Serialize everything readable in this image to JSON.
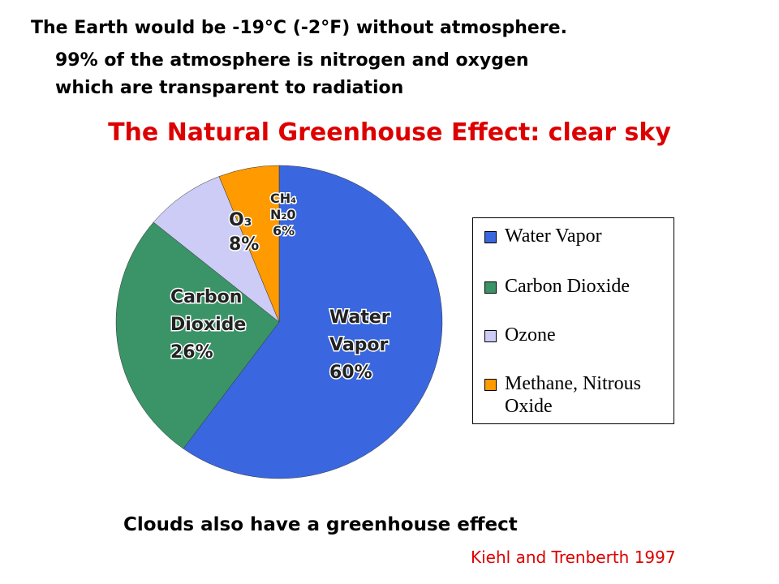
{
  "header": {
    "lines": [
      "The Earth would be -19°C  (-2°F) without atmosphere.",
      "99% of the atmosphere is nitrogen and oxygen",
      "which are transparent to radiation"
    ]
  },
  "chart_data": {
    "type": "pie",
    "title": "The Natural Greenhouse Effect: clear sky",
    "categories": [
      "Water Vapor",
      "Carbon Dioxide",
      "Ozone",
      "Methane, Nitrous Oxide"
    ],
    "values": [
      60,
      26,
      8,
      6
    ],
    "value_labels": [
      "60%",
      "26%",
      "8%",
      "6%"
    ],
    "slice_labels": [
      "Water Vapor",
      "Carbon Dioxide",
      "O₃",
      "CH₄ N₂0"
    ],
    "colors": [
      "#3a67df",
      "#3a9467",
      "#ccccf6",
      "#ff9a00"
    ]
  },
  "footer": {
    "note": "Clouds also have a greenhouse effect",
    "source": "Kiehl and Trenberth 1997"
  }
}
